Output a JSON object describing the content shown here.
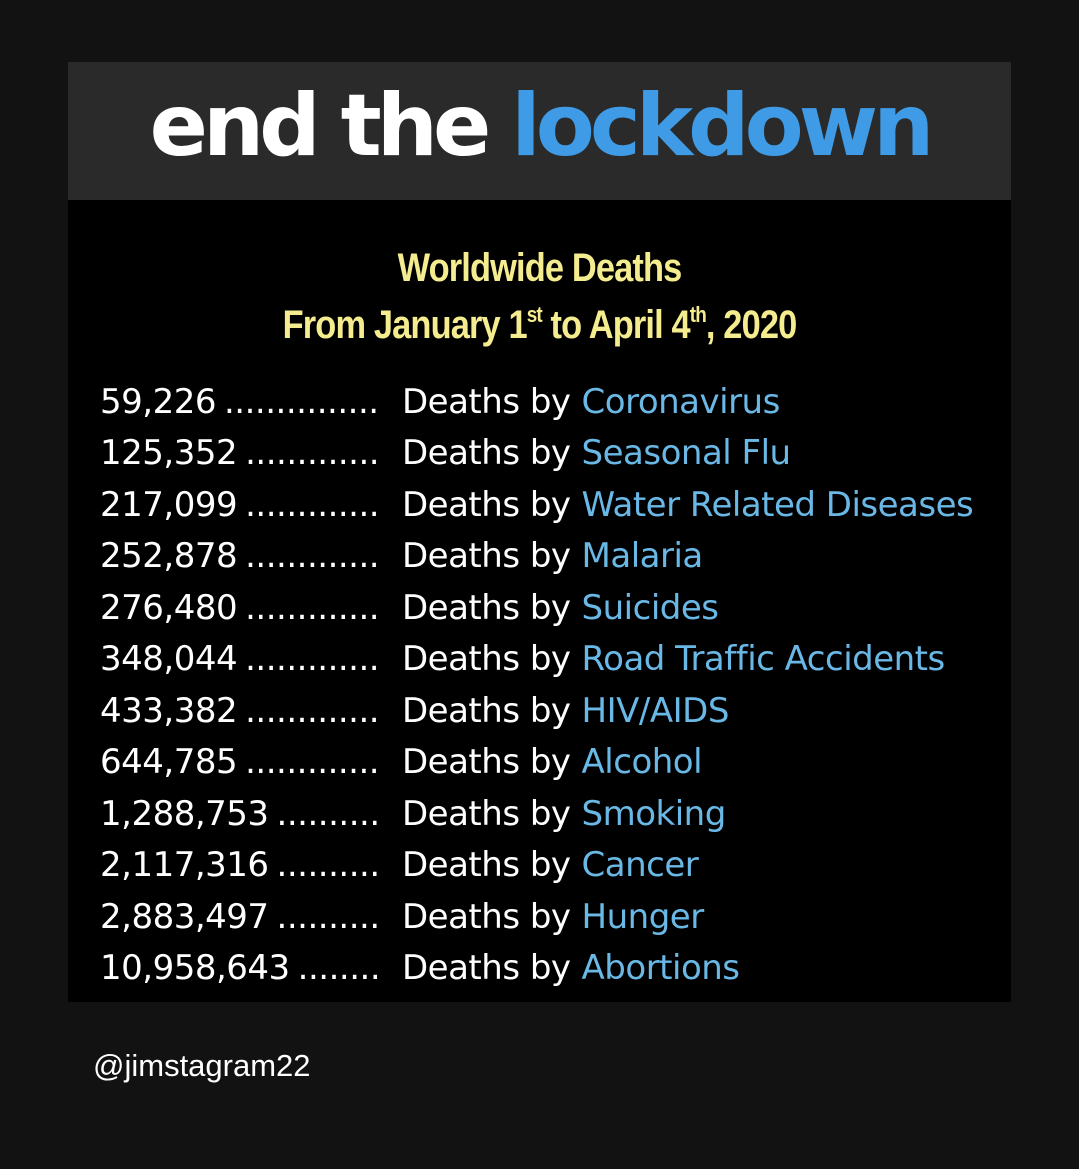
{
  "headline": {
    "word_white": "end the",
    "word_blue": "lockdown"
  },
  "subtitle": {
    "line1": "Worldwide Deaths",
    "line2_a": "From January 1",
    "line2_a_sup": "st",
    "line2_b": " to April 4",
    "line2_b_sup": "th",
    "line2_c": ",  2020"
  },
  "stats": [
    {
      "value": "59,226",
      "dots": "...............",
      "label": "Deaths by",
      "cause": "Coronavirus"
    },
    {
      "value": "125,352",
      "dots": ".............",
      "label": "Deaths by",
      "cause": "Seasonal Flu"
    },
    {
      "value": "217,099",
      "dots": ".............",
      "label": "Deaths by",
      "cause": "Water Related Diseases"
    },
    {
      "value": "252,878",
      "dots": ".............",
      "label": "Deaths by",
      "cause": "Malaria"
    },
    {
      "value": "276,480",
      "dots": ".............",
      "label": "Deaths by",
      "cause": "Suicides"
    },
    {
      "value": "348,044",
      "dots": ".............",
      "label": "Deaths by",
      "cause": "Road Traffic Accidents"
    },
    {
      "value": "433,382",
      "dots": ".............",
      "label": "Deaths by",
      "cause": "HIV/AIDS"
    },
    {
      "value": "644,785",
      "dots": ".............",
      "label": "Deaths by",
      "cause": "Alcohol"
    },
    {
      "value": "1,288,753",
      "dots": "..........",
      "label": "Deaths by",
      "cause": "Smoking"
    },
    {
      "value": "2,117,316",
      "dots": "..........",
      "label": "Deaths by",
      "cause": "Cancer"
    },
    {
      "value": "2,883,497",
      "dots": "..........",
      "label": "Deaths by",
      "cause": "Hunger"
    },
    {
      "value": "10,958,643",
      "dots": "........",
      "label": "Deaths by",
      "cause": "Abortions"
    }
  ],
  "handle": "@jimstagram22",
  "colors": {
    "page_background": "#121212",
    "card_background": "#000000",
    "headline_bar": "#2a2a2a",
    "headline_blue": "#3f9be6",
    "subtitle_yellow": "#f4ec8e",
    "cause_blue": "#6ab8e6"
  }
}
